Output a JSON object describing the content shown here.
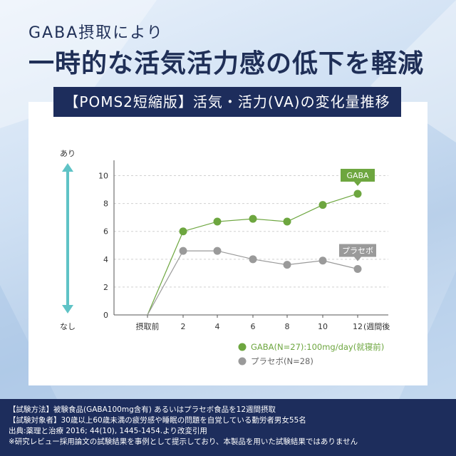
{
  "header": {
    "subtitle": "GABA摂取により",
    "headline": "一時的な活気活力感の低下を軽減"
  },
  "card_title": "【POMS2短縮版】活気・活力(VA)の変化量推移",
  "colors": {
    "navy": "#1d2d5c",
    "gaba": "#6da63f",
    "placebo": "#9a9a9a",
    "arrow": "#5fc3c6"
  },
  "chart_data": {
    "type": "line",
    "categories": [
      "摂取前",
      "2",
      "4",
      "6",
      "8",
      "10",
      "12"
    ],
    "x_suffix": "(週間後",
    "y_ticks": [
      "0",
      "2",
      "4",
      "6",
      "8",
      "10"
    ],
    "ylim": [
      0,
      11
    ],
    "grid": true,
    "y_axis_top_label": "あり",
    "y_axis_bottom_label": "なし",
    "series": [
      {
        "name": "GABA",
        "values": [
          0,
          6.0,
          6.7,
          6.9,
          6.7,
          7.9,
          8.7
        ]
      },
      {
        "name": "プラセボ",
        "values": [
          0,
          4.6,
          4.6,
          4.0,
          3.6,
          3.9,
          3.3
        ]
      }
    ],
    "legend": [
      "GABA(N=27):100mg/day(就寝前)",
      "プラセボ(N=28)"
    ],
    "legend_position": "bottom"
  },
  "footer": {
    "lines": [
      "【試験方法】被験食品(GABA100mg含有) あるいはプラセボ食品を12週間摂取",
      "【試験対象者】30歳以上60歳未満の疲労感や睡眠の問題を自覚している勤労者男女55名",
      "出典:薬理と治療 2016; 44(10), 1445-1454.より改変引用",
      "※研究レビュー採用論文の試験結果を事例として提示しており、本製品を用いた試験結果ではありません"
    ]
  }
}
